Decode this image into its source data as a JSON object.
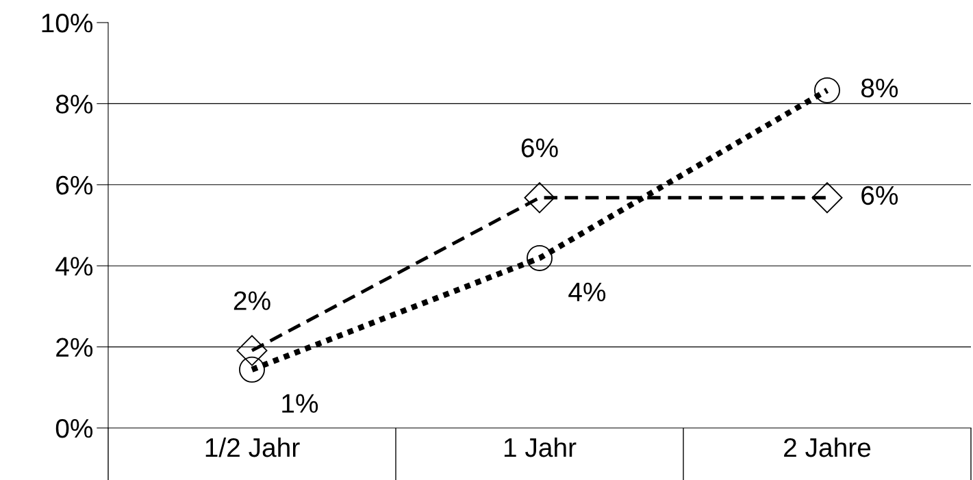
{
  "chart_data": {
    "type": "line",
    "categories": [
      "1/2 Jahr",
      "1 Jahr",
      "2 Jahre"
    ],
    "series": [
      {
        "color": "#000000",
        "values": [
          1.91,
          5.68,
          5.68
        ],
        "value_labels": [
          "2%",
          "6%",
          "6%"
        ],
        "marker": "diamond",
        "line_style": "dashed"
      },
      {
        "color": "#000000",
        "values": [
          1.44,
          4.19,
          8.33
        ],
        "value_labels": [
          "1%",
          "4%",
          "8%"
        ],
        "marker": "circle",
        "line_style": "dotted"
      }
    ],
    "ylim": [
      0,
      10
    ],
    "yticks": [
      {
        "value": 0,
        "label": "0%"
      },
      {
        "value": 2,
        "label": "2%"
      },
      {
        "value": 4,
        "label": "4%"
      },
      {
        "value": 6,
        "label": "6%"
      },
      {
        "value": 8,
        "label": "8%"
      },
      {
        "value": 10,
        "label": "10%"
      }
    ],
    "grid": "y",
    "legend": false
  }
}
